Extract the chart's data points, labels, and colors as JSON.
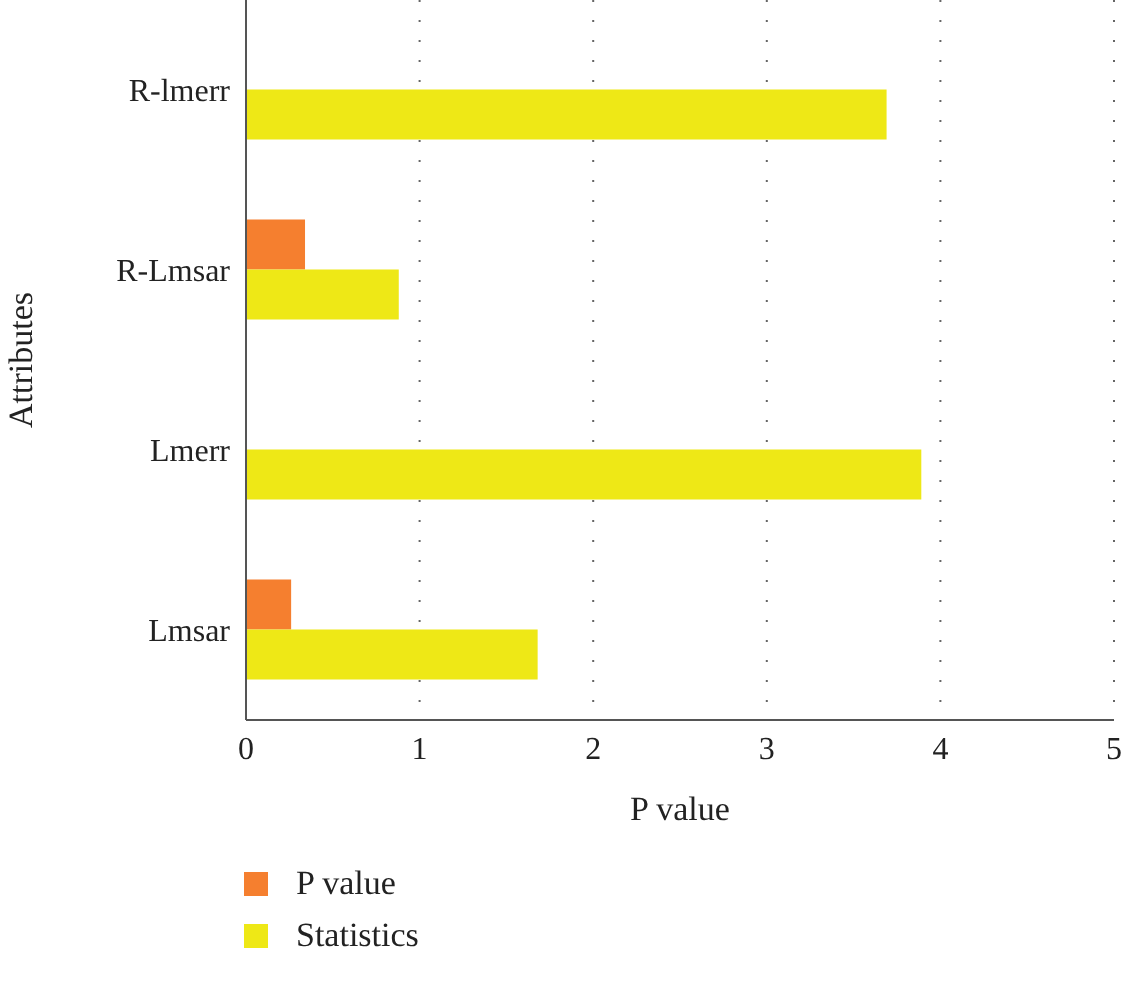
{
  "chart_data": {
    "type": "bar",
    "orientation": "horizontal",
    "xlabel": "P value",
    "ylabel": "Attributes",
    "categories": [
      "R-lmerr",
      "R-Lmsar",
      "Lmerr",
      "Lmsar"
    ],
    "series": [
      {
        "name": "P value",
        "color": "#f57f2f",
        "values": [
          0,
          0.34,
          0,
          0.26
        ]
      },
      {
        "name": "Statistics",
        "color": "#eee816",
        "values": [
          3.69,
          0.88,
          3.89,
          1.68
        ]
      }
    ],
    "xlim": [
      0,
      5
    ],
    "xticks": [
      0,
      1,
      2,
      3,
      4,
      5
    ],
    "grid": "x",
    "legend": "bottom left"
  }
}
